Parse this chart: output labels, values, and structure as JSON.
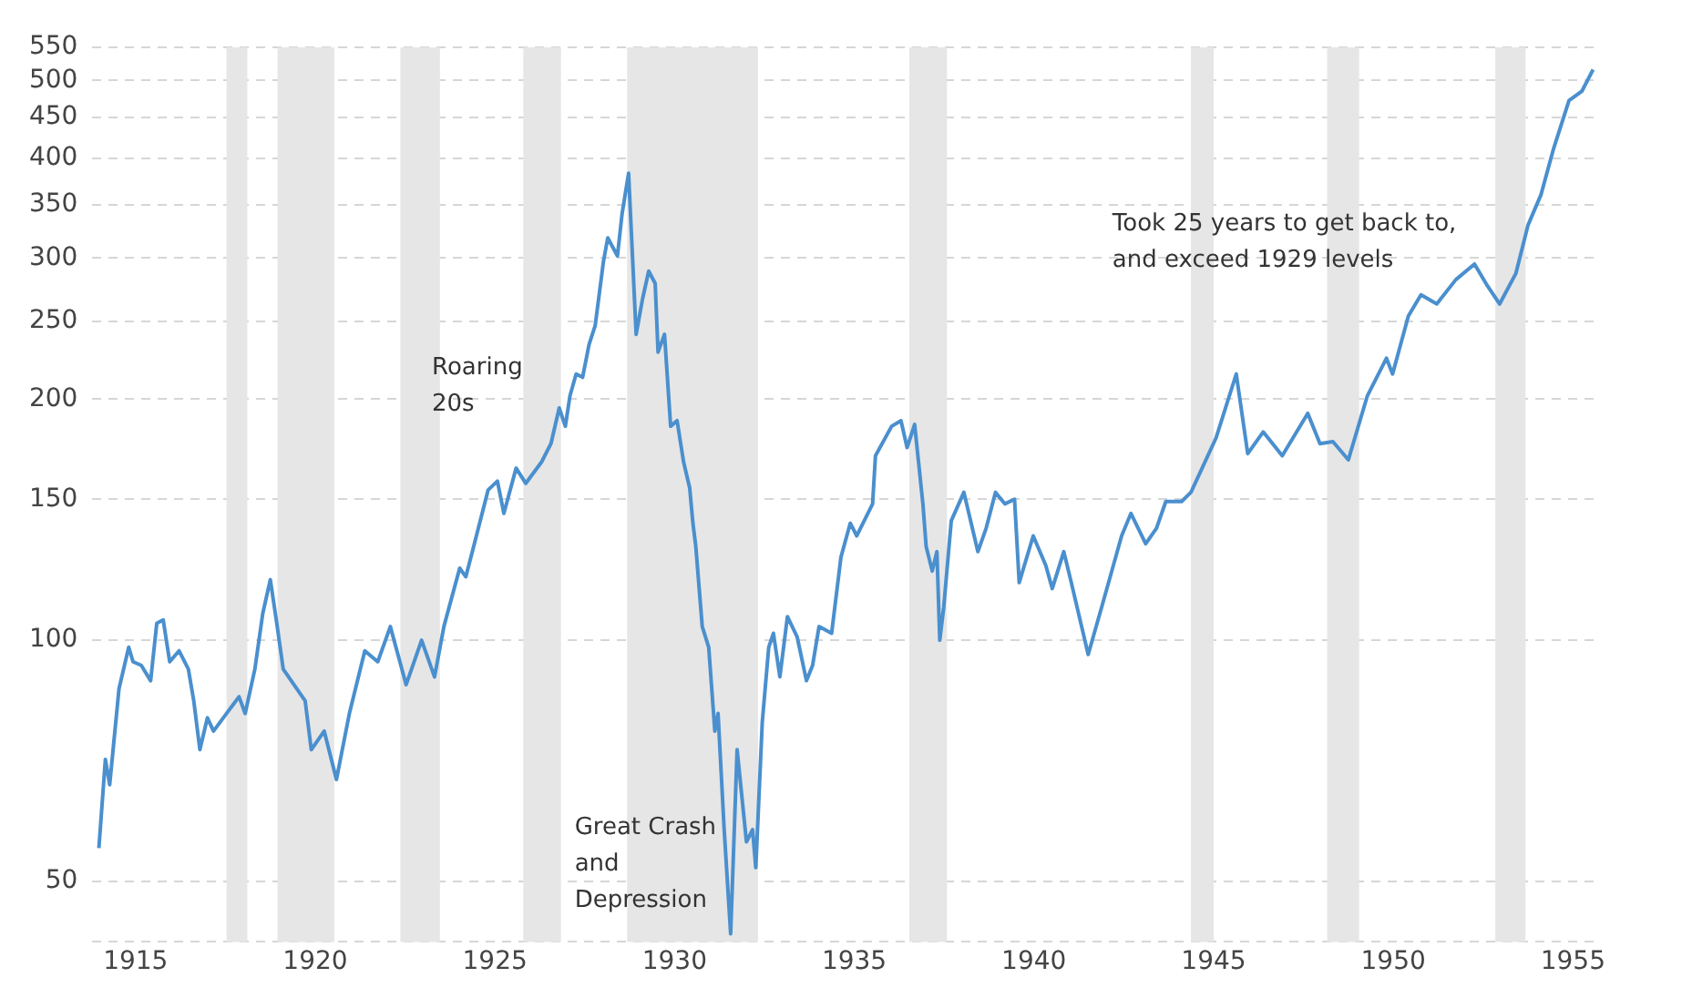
{
  "chart_data": {
    "type": "line",
    "series": [
      {
        "color": "#4a8fce",
        "x": [
          1913.98,
          1914.16,
          1914.28,
          1914.54,
          1914.81,
          1914.93,
          1915.16,
          1915.42,
          1915.59,
          1915.77,
          1915.95,
          1916.21,
          1916.47,
          1916.62,
          1916.79,
          1917.0,
          1917.17,
          1917.53,
          1917.88,
          1918.05,
          1918.32,
          1918.54,
          1918.75,
          1918.93,
          1919.11,
          1919.72,
          1919.89,
          1920.25,
          1920.59,
          1920.95,
          1921.38,
          1921.74,
          1922.09,
          1922.53,
          1922.96,
          1923.32,
          1923.58,
          1924.02,
          1924.19,
          1924.41,
          1924.81,
          1925.07,
          1925.25,
          1925.59,
          1925.86,
          1926.3,
          1926.56,
          1926.79,
          1926.96,
          1927.09,
          1927.26,
          1927.44,
          1927.62,
          1927.79,
          1928.02,
          1928.14,
          1928.41,
          1928.54,
          1928.72,
          1928.93,
          1929.11,
          1929.28,
          1929.46,
          1929.54,
          1929.72,
          1929.89,
          1930.07,
          1930.25,
          1930.42,
          1930.51,
          1930.59,
          1930.77,
          1930.95,
          1931.12,
          1931.21,
          1931.38,
          1931.56,
          1931.74,
          1932.0,
          1932.17,
          1932.26,
          1932.44,
          1932.62,
          1932.75,
          1932.93,
          1933.14,
          1933.41,
          1933.67,
          1933.84,
          1934.02,
          1934.37,
          1934.63,
          1934.89,
          1935.07,
          1935.51,
          1935.59,
          1936.04,
          1936.3,
          1936.47,
          1936.68,
          1936.91,
          1937.0,
          1937.17,
          1937.3,
          1937.38,
          1937.49,
          1937.7,
          1938.05,
          1938.44,
          1938.67,
          1938.93,
          1939.19,
          1939.46,
          1939.59,
          1939.98,
          1940.33,
          1940.51,
          1940.83,
          1941.04,
          1941.51,
          1941.91,
          1942.44,
          1942.7,
          1943.11,
          1943.41,
          1943.67,
          1944.11,
          1944.37,
          1945.07,
          1945.63,
          1945.95,
          1946.38,
          1946.91,
          1947.62,
          1947.96,
          1948.32,
          1948.75,
          1949.28,
          1949.81,
          1949.98,
          1950.42,
          1950.77,
          1951.21,
          1951.74,
          1952.26,
          1952.62,
          1952.96,
          1953.41,
          1953.75,
          1954.11,
          1954.46,
          1954.89,
          1955.25,
          1955.56
        ],
        "values": [
          55,
          71,
          66,
          87,
          98,
          94,
          93,
          89,
          105,
          106,
          94,
          97,
          92,
          84,
          73,
          80,
          77,
          81,
          85,
          81,
          92,
          108,
          119,
          105,
          92,
          84,
          73,
          77,
          67,
          81,
          97,
          94,
          104,
          88,
          100,
          90,
          104,
          123,
          120,
          131,
          154,
          158,
          144,
          164,
          157,
          167,
          176,
          195,
          185,
          202,
          215,
          213,
          234,
          247,
          297,
          318,
          302,
          341,
          383,
          241,
          267,
          289,
          279,
          229,
          241,
          185,
          188,
          167,
          155,
          140,
          131,
          104,
          98,
          77,
          81,
          58,
          43,
          73,
          56,
          58,
          52,
          79,
          98,
          102,
          90,
          107,
          101,
          89,
          93,
          104,
          102,
          127,
          140,
          135,
          148,
          170,
          185,
          188,
          174,
          186,
          148,
          131,
          122,
          129,
          100,
          110,
          141,
          153,
          129,
          138,
          153,
          148,
          150,
          118,
          135,
          124,
          116,
          129,
          118,
          96,
          111,
          135,
          144,
          132,
          138,
          149,
          149,
          153,
          179,
          215,
          171,
          182,
          170,
          192,
          176,
          177,
          168,
          202,
          225,
          215,
          254,
          270,
          263,
          282,
          295,
          277,
          263,
          287,
          330,
          360,
          411,
          472,
          485,
          516
        ]
      }
    ],
    "xlim": [
      1913.8,
      1955.6
    ],
    "xticks": [
      1915,
      1920,
      1925,
      1930,
      1935,
      1940,
      1945,
      1950,
      1955
    ],
    "ylim": [
      42,
      550
    ],
    "yticks": [
      {
        "value": 42,
        "label": null
      },
      50,
      100,
      150,
      200,
      250,
      300,
      350,
      400,
      450,
      500,
      550
    ],
    "log": "y",
    "grid": "y",
    "line_style": "solid",
    "bands": [
      {
        "axis": "x",
        "from": 1917.53,
        "to": 1918.11,
        "color": "#e6e6e6"
      },
      {
        "axis": "x",
        "from": 1918.95,
        "to": 1920.53,
        "color": "#e6e6e6"
      },
      {
        "axis": "x",
        "from": 1922.37,
        "to": 1923.47,
        "color": "#e6e6e6"
      },
      {
        "axis": "x",
        "from": 1925.79,
        "to": 1926.84,
        "color": "#e6e6e6"
      },
      {
        "axis": "x",
        "from": 1928.68,
        "to": 1932.32,
        "color": "#e6e6e6"
      },
      {
        "axis": "x",
        "from": 1936.53,
        "to": 1937.58,
        "color": "#e6e6e6"
      },
      {
        "axis": "x",
        "from": 1944.37,
        "to": 1945.0,
        "color": "#e6e6e6"
      },
      {
        "axis": "x",
        "from": 1948.16,
        "to": 1949.05,
        "color": "#e6e6e6"
      },
      {
        "axis": "x",
        "from": 1952.84,
        "to": 1953.68,
        "color": "#e6e6e6"
      }
    ],
    "annotations": [
      "Roaring\n20s",
      "Great Crash\nand\nDepression",
      "Took 25 years to get back to,\nand exceed 1929 levels"
    ]
  }
}
